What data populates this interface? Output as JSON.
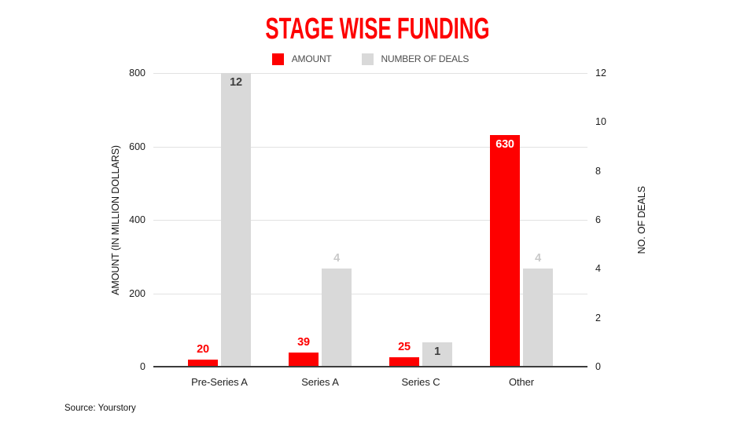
{
  "title": {
    "text": "STAGE WISE FUNDING",
    "color": "#fe0000"
  },
  "source": {
    "text": "Source: Yourstory"
  },
  "chart_data": {
    "type": "bar",
    "title": "STAGE WISE FUNDING",
    "categories": [
      "Pre-Series A",
      "Series A",
      "Series C",
      "Other"
    ],
    "series": [
      {
        "name": "AMOUNT",
        "axis": "left",
        "color": "#fe0000",
        "values": [
          20,
          39,
          25,
          630
        ],
        "labels": [
          {
            "text": "20",
            "pos": "above"
          },
          {
            "text": "39",
            "pos": "above"
          },
          {
            "text": "25",
            "pos": "above"
          },
          {
            "text": "630",
            "pos": "inside"
          }
        ],
        "label_color_above": "#fe0000",
        "label_color_inside": "#ffffff"
      },
      {
        "name": "NUMBER OF DEALS",
        "axis": "right",
        "color": "#d9d9d9",
        "values": [
          12,
          4,
          1,
          4
        ],
        "labels": [
          {
            "text": "12",
            "pos": "inside"
          },
          {
            "text": "4",
            "pos": "above"
          },
          {
            "text": "1",
            "pos": "inside"
          },
          {
            "text": "4",
            "pos": "above"
          }
        ],
        "label_color_above": "#c9c9c9",
        "label_color_inside": "#3d3d3d"
      }
    ],
    "left_axis": {
      "title": "AMOUNT (IN MILLION DOLLARS)",
      "min": 0,
      "max": 800,
      "ticks": [
        0,
        200,
        400,
        600,
        800
      ]
    },
    "right_axis": {
      "title": "NO. OF DEALS",
      "min": 0,
      "max": 12,
      "ticks": [
        0,
        2,
        4,
        6,
        8,
        10,
        12
      ]
    },
    "grid": "horizontal",
    "legend_position": "top"
  }
}
